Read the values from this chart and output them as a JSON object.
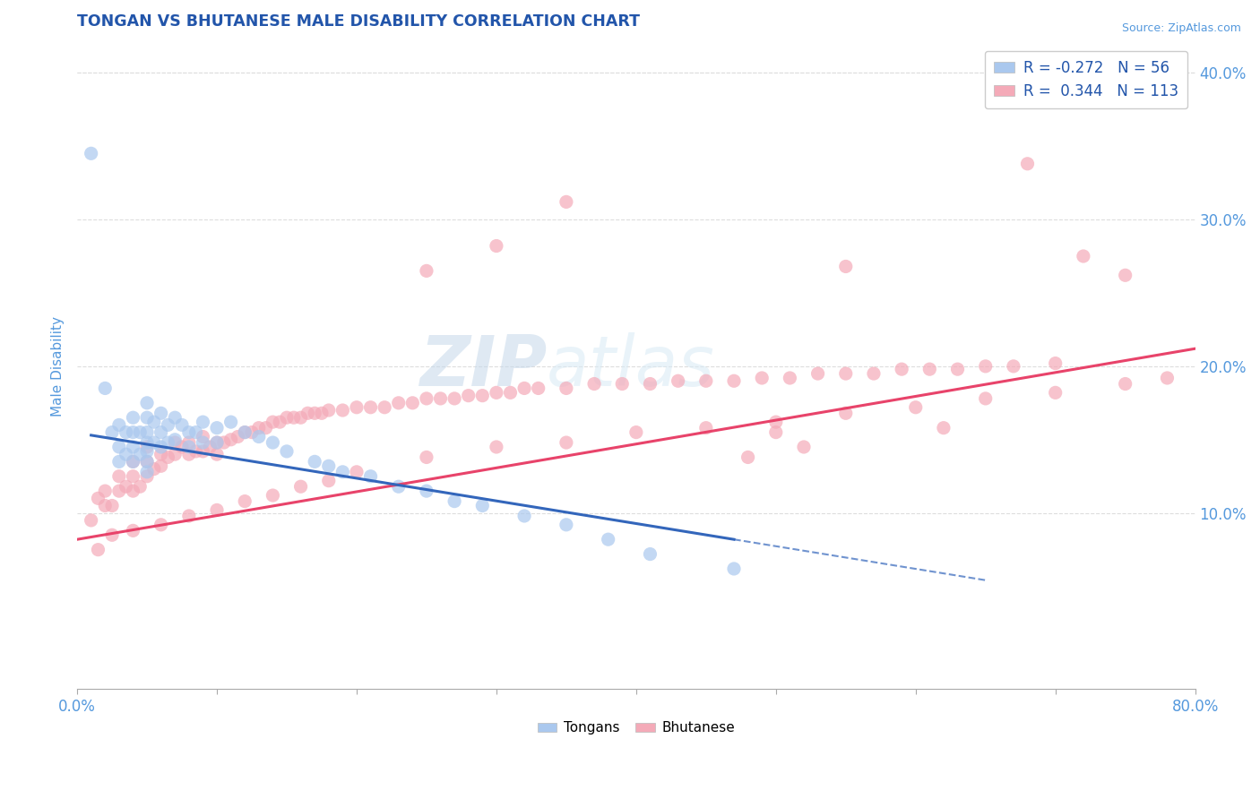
{
  "title": "TONGAN VS BHUTANESE MALE DISABILITY CORRELATION CHART",
  "source_text": "Source: ZipAtlas.com",
  "ylabel": "Male Disability",
  "xlim": [
    0.0,
    0.8
  ],
  "ylim": [
    -0.02,
    0.42
  ],
  "yticks": [
    0.1,
    0.2,
    0.3,
    0.4
  ],
  "ytick_labels": [
    "10.0%",
    "20.0%",
    "30.0%",
    "40.0%"
  ],
  "xticks": [
    0.0,
    0.1,
    0.2,
    0.3,
    0.4,
    0.5,
    0.6,
    0.7,
    0.8
  ],
  "legend_r1": "R = -0.272",
  "legend_n1": "N = 56",
  "legend_r2": "R =  0.344",
  "legend_n2": "N = 113",
  "blue_color": "#aac8ee",
  "pink_color": "#f4aab8",
  "line_blue": "#3366bb",
  "line_pink": "#e8436a",
  "title_color": "#2255aa",
  "axis_label_color": "#5599dd",
  "watermark_zip_color": "#c8d8e8",
  "watermark_atlas_color": "#ddeeff",
  "background_color": "#ffffff",
  "tongans_x": [
    0.01,
    0.02,
    0.025,
    0.03,
    0.03,
    0.03,
    0.035,
    0.035,
    0.04,
    0.04,
    0.04,
    0.04,
    0.045,
    0.045,
    0.05,
    0.05,
    0.05,
    0.05,
    0.05,
    0.05,
    0.05,
    0.055,
    0.055,
    0.06,
    0.06,
    0.06,
    0.065,
    0.065,
    0.07,
    0.07,
    0.075,
    0.08,
    0.08,
    0.085,
    0.09,
    0.09,
    0.1,
    0.1,
    0.11,
    0.12,
    0.13,
    0.14,
    0.15,
    0.17,
    0.18,
    0.19,
    0.21,
    0.23,
    0.25,
    0.27,
    0.29,
    0.32,
    0.35,
    0.38,
    0.41,
    0.47
  ],
  "tongans_y": [
    0.345,
    0.185,
    0.155,
    0.16,
    0.145,
    0.135,
    0.155,
    0.14,
    0.165,
    0.155,
    0.145,
    0.135,
    0.155,
    0.14,
    0.175,
    0.165,
    0.155,
    0.148,
    0.142,
    0.135,
    0.128,
    0.162,
    0.148,
    0.168,
    0.155,
    0.145,
    0.16,
    0.148,
    0.165,
    0.15,
    0.16,
    0.155,
    0.145,
    0.155,
    0.162,
    0.148,
    0.158,
    0.148,
    0.162,
    0.155,
    0.152,
    0.148,
    0.142,
    0.135,
    0.132,
    0.128,
    0.125,
    0.118,
    0.115,
    0.108,
    0.105,
    0.098,
    0.092,
    0.082,
    0.072,
    0.062
  ],
  "bhutanese_x": [
    0.01,
    0.015,
    0.02,
    0.02,
    0.025,
    0.03,
    0.03,
    0.035,
    0.04,
    0.04,
    0.04,
    0.045,
    0.05,
    0.05,
    0.05,
    0.055,
    0.06,
    0.06,
    0.065,
    0.07,
    0.07,
    0.075,
    0.08,
    0.08,
    0.085,
    0.09,
    0.09,
    0.095,
    0.1,
    0.1,
    0.105,
    0.11,
    0.115,
    0.12,
    0.125,
    0.13,
    0.135,
    0.14,
    0.145,
    0.15,
    0.155,
    0.16,
    0.165,
    0.17,
    0.175,
    0.18,
    0.19,
    0.2,
    0.21,
    0.22,
    0.23,
    0.24,
    0.25,
    0.26,
    0.27,
    0.28,
    0.29,
    0.3,
    0.31,
    0.32,
    0.33,
    0.35,
    0.37,
    0.39,
    0.41,
    0.43,
    0.45,
    0.47,
    0.49,
    0.51,
    0.53,
    0.55,
    0.57,
    0.59,
    0.61,
    0.63,
    0.65,
    0.67,
    0.7,
    0.25,
    0.3,
    0.35,
    0.5,
    0.55,
    0.62,
    0.68,
    0.72,
    0.75,
    0.015,
    0.025,
    0.04,
    0.06,
    0.08,
    0.1,
    0.12,
    0.14,
    0.16,
    0.18,
    0.2,
    0.25,
    0.3,
    0.35,
    0.4,
    0.45,
    0.5,
    0.55,
    0.6,
    0.65,
    0.7,
    0.75,
    0.78,
    0.48,
    0.52
  ],
  "bhutanese_y": [
    0.095,
    0.11,
    0.115,
    0.105,
    0.105,
    0.125,
    0.115,
    0.118,
    0.135,
    0.125,
    0.115,
    0.118,
    0.145,
    0.135,
    0.125,
    0.13,
    0.14,
    0.132,
    0.138,
    0.148,
    0.14,
    0.145,
    0.148,
    0.14,
    0.142,
    0.152,
    0.142,
    0.145,
    0.148,
    0.14,
    0.148,
    0.15,
    0.152,
    0.155,
    0.155,
    0.158,
    0.158,
    0.162,
    0.162,
    0.165,
    0.165,
    0.165,
    0.168,
    0.168,
    0.168,
    0.17,
    0.17,
    0.172,
    0.172,
    0.172,
    0.175,
    0.175,
    0.178,
    0.178,
    0.178,
    0.18,
    0.18,
    0.182,
    0.182,
    0.185,
    0.185,
    0.185,
    0.188,
    0.188,
    0.188,
    0.19,
    0.19,
    0.19,
    0.192,
    0.192,
    0.195,
    0.195,
    0.195,
    0.198,
    0.198,
    0.198,
    0.2,
    0.2,
    0.202,
    0.265,
    0.282,
    0.312,
    0.155,
    0.268,
    0.158,
    0.338,
    0.275,
    0.262,
    0.075,
    0.085,
    0.088,
    0.092,
    0.098,
    0.102,
    0.108,
    0.112,
    0.118,
    0.122,
    0.128,
    0.138,
    0.145,
    0.148,
    0.155,
    0.158,
    0.162,
    0.168,
    0.172,
    0.178,
    0.182,
    0.188,
    0.192,
    0.138,
    0.145
  ]
}
